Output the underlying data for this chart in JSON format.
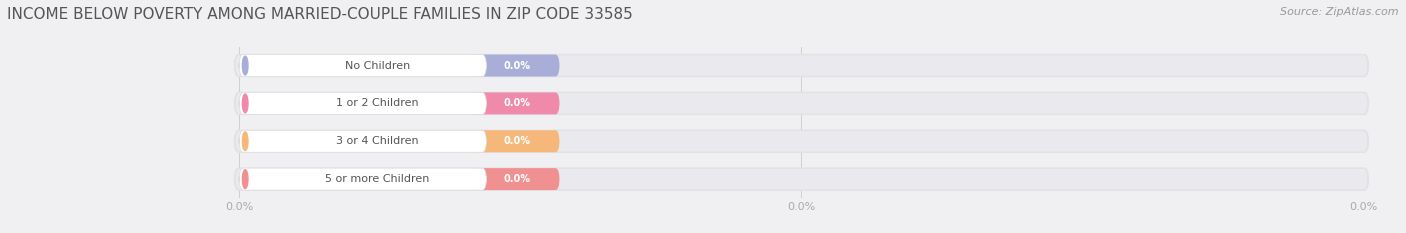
{
  "title": "INCOME BELOW POVERTY AMONG MARRIED-COUPLE FAMILIES IN ZIP CODE 33585",
  "source": "Source: ZipAtlas.com",
  "categories": [
    "No Children",
    "1 or 2 Children",
    "3 or 4 Children",
    "5 or more Children"
  ],
  "values": [
    0.0,
    0.0,
    0.0,
    0.0
  ],
  "bar_colors": [
    "#a8aed8",
    "#f08aaa",
    "#f5b87a",
    "#f09090"
  ],
  "background_color": "#f0f0f2",
  "bar_bg_color": "#e2e2e6",
  "bar_bg_inner": "#eaeaee",
  "tick_label_color": "#aaaaaa",
  "title_color": "#555555",
  "source_color": "#999999",
  "category_text_color": "#555555",
  "value_text_color": "#ffffff",
  "grid_color": "#d0d0d0",
  "white_pill_color": "#ffffff",
  "xlim_max": 100,
  "xtick_positions": [
    0,
    50,
    100
  ],
  "xtick_labels": [
    "0.0%",
    "0.0%",
    "0.0%"
  ],
  "title_fontsize": 11,
  "source_fontsize": 8,
  "category_fontsize": 8,
  "value_fontsize": 7,
  "tick_fontsize": 8
}
